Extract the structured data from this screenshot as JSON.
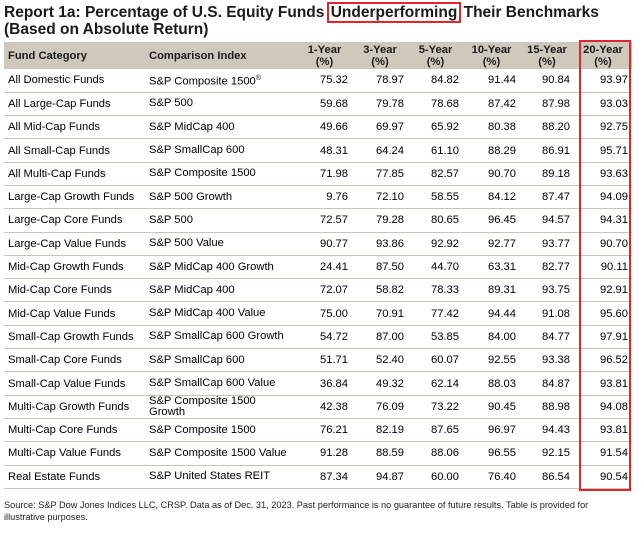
{
  "title": {
    "prefix": "Report 1a: Percentage of U.S. Equity Funds ",
    "highlight": "Underperforming",
    "suffix": " Their Benchmarks",
    "line2": "(Based on Absolute Return)"
  },
  "headers": {
    "category": "Fund Category",
    "index": "Comparison Index",
    "y1": "1-Year (%)",
    "y3": "3-Year (%)",
    "y5": "5-Year (%)",
    "y10": "10-Year (%)",
    "y15": "15-Year (%)",
    "y20": "20-Year (%)"
  },
  "rows": [
    {
      "category": "All Domestic Funds",
      "index": "S&P Composite 1500",
      "mark": "®",
      "values": [
        "75.32",
        "78.97",
        "84.82",
        "91.44",
        "90.84",
        "93.97"
      ]
    },
    {
      "category": "All Large-Cap Funds",
      "index": "S&P 500",
      "values": [
        "59.68",
        "79.78",
        "78.68",
        "87.42",
        "87.98",
        "93.03"
      ]
    },
    {
      "category": "All Mid-Cap Funds",
      "index": "S&P MidCap 400",
      "values": [
        "49.66",
        "69.97",
        "65.92",
        "80.38",
        "88.20",
        "92.75"
      ]
    },
    {
      "category": "All Small-Cap Funds",
      "index": "S&P SmallCap 600",
      "values": [
        "48.31",
        "64.24",
        "61.10",
        "88.29",
        "86.91",
        "95.71"
      ]
    },
    {
      "category": "All Multi-Cap Funds",
      "index": "S&P Composite 1500",
      "values": [
        "71.98",
        "77.85",
        "82.57",
        "90.70",
        "89.18",
        "93.63"
      ]
    },
    {
      "category": "Large-Cap Growth Funds",
      "index": "S&P 500 Growth",
      "values": [
        "9.76",
        "72.10",
        "58.55",
        "84.12",
        "87.47",
        "94.09"
      ]
    },
    {
      "category": "Large-Cap Core Funds",
      "index": "S&P 500",
      "values": [
        "72.57",
        "79.28",
        "80.65",
        "96.45",
        "94.57",
        "94.31"
      ]
    },
    {
      "category": "Large-Cap Value Funds",
      "index": "S&P 500 Value",
      "values": [
        "90.77",
        "93.86",
        "92.92",
        "92.77",
        "93.77",
        "90.70"
      ]
    },
    {
      "category": "Mid-Cap Growth Funds",
      "index": "S&P MidCap 400 Growth",
      "values": [
        "24.41",
        "87.50",
        "44.70",
        "63.31",
        "82.77",
        "90.11"
      ]
    },
    {
      "category": "Mid-Cap Core Funds",
      "index": "S&P MidCap 400",
      "values": [
        "72.07",
        "58.82",
        "78.33",
        "89.31",
        "93.75",
        "92.91"
      ]
    },
    {
      "category": "Mid-Cap Value Funds",
      "index": "S&P MidCap 400 Value",
      "values": [
        "75.00",
        "70.91",
        "77.42",
        "94.44",
        "91.08",
        "95.60"
      ]
    },
    {
      "category": "Small-Cap Growth Funds",
      "index": "S&P SmallCap 600 Growth",
      "values": [
        "54.72",
        "87.00",
        "53.85",
        "84.00",
        "84.77",
        "97.91"
      ]
    },
    {
      "category": "Small-Cap Core Funds",
      "index": "S&P SmallCap 600",
      "values": [
        "51.71",
        "52.40",
        "60.07",
        "92.55",
        "93.38",
        "96.52"
      ]
    },
    {
      "category": "Small-Cap Value Funds",
      "index": "S&P SmallCap 600 Value",
      "values": [
        "36.84",
        "49.32",
        "62.14",
        "88.03",
        "84.87",
        "93.81"
      ]
    },
    {
      "category": "Multi-Cap Growth Funds",
      "index": "S&P Composite 1500 Growth",
      "values": [
        "42.38",
        "76.09",
        "73.22",
        "90.45",
        "88.98",
        "94.08"
      ]
    },
    {
      "category": "Multi-Cap Core Funds",
      "index": "S&P Composite 1500",
      "values": [
        "76.21",
        "82.19",
        "87.65",
        "96.97",
        "94.43",
        "93.81"
      ]
    },
    {
      "category": "Multi-Cap Value Funds",
      "index": "S&P Composite 1500 Value",
      "values": [
        "91.28",
        "88.59",
        "88.06",
        "96.55",
        "92.15",
        "91.54"
      ]
    },
    {
      "category": "Real Estate Funds",
      "index": "S&P United States REIT",
      "values": [
        "87.34",
        "94.87",
        "60.00",
        "76.40",
        "86.54",
        "90.54"
      ]
    }
  ],
  "source": "Source: S&P Dow Jones Indices LLC, CRSP.  Data as of Dec. 31, 2023.  Past performance is no guarantee of future results.  Table is provided for illustrative purposes.",
  "colors": {
    "highlight_border": "#e0262b",
    "header_bg": "#cfc8bd"
  }
}
